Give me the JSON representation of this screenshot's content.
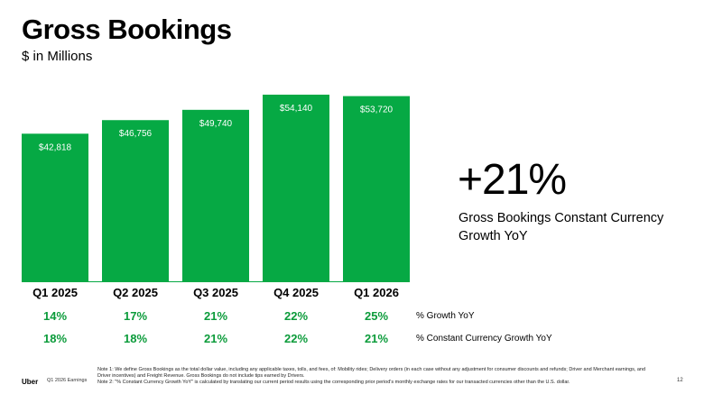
{
  "header": {
    "title": "Gross Bookings",
    "subtitle": "$ in Millions"
  },
  "chart_data": {
    "type": "bar",
    "categories": [
      "Q1 2025",
      "Q2 2025",
      "Q3 2025",
      "Q4 2025",
      "Q1 2026"
    ],
    "values": [
      42818,
      46756,
      49740,
      54140,
      53720
    ],
    "data_labels": [
      "$42,818",
      "$46,756",
      "$49,740",
      "$54,140",
      "$53,720"
    ],
    "bar_color": "#06a944",
    "ylim": [
      0,
      54140
    ],
    "grid": false,
    "title": "Gross Bookings",
    "subtitle": "$ in Millions"
  },
  "growth_rows": [
    {
      "label": "% Growth YoY",
      "values": [
        "14%",
        "17%",
        "21%",
        "22%",
        "25%"
      ]
    },
    {
      "label": "% Constant Currency Growth YoY",
      "values": [
        "18%",
        "18%",
        "21%",
        "22%",
        "21%"
      ]
    }
  ],
  "growth_color": "#0b9b3a",
  "highlight": {
    "value": "+21%",
    "caption": "Gross Bookings Constant Currency Growth YoY"
  },
  "footer": {
    "logo": "Uber",
    "source": "Q1 2026 Earnings",
    "notes": [
      "Note 1: We define Gross Bookings as the total dollar value, including any applicable taxes, tolls, and fees, of: Mobility rides; Delivery orders (in each case without any adjustment for consumer discounts and refunds; Driver and Merchant earnings, and Driver incentives) and Freight Revenue. Gross Bookings do not include tips earned by Drivers.",
      "Note 2: \"% Constant Currency Growth YoY\" is calculated by translating our current period results using the corresponding prior period's monthly exchange rates for our transacted currencies other than the U.S. dollar."
    ],
    "page_number": "12"
  }
}
